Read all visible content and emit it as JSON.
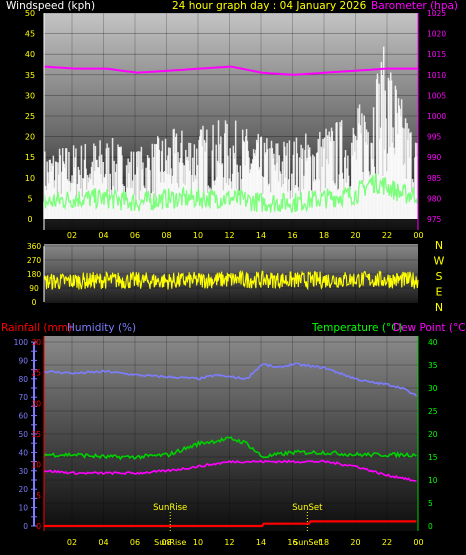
{
  "header": {
    "left": "Windspeed (kph)",
    "center": "24 hour graph day : 04 January 2026",
    "right": "Barometer (hpa)"
  },
  "compass": [
    "N",
    "W",
    "S",
    "E",
    "N"
  ],
  "bottom_header": {
    "rainfall": "Rainfall (mm)",
    "humidity": "Humidity (%)",
    "temperature": "Temperature (°C)",
    "dewpoint": "Dew Point (°C)"
  },
  "colors": {
    "wind_gust": "#ffffff",
    "wind_avg": "#7dff7d",
    "barometer": "#ff00ff",
    "direction": "#ffff00",
    "rainfall": "#ff0000",
    "humidity": "#7d7dff",
    "temperature": "#00d000",
    "dewpoint": "#ff00ff",
    "text_yellow": "#ffff00",
    "text_white": "#ffffff",
    "text_green": "#00ff00"
  },
  "chart_data": [
    {
      "type": "line",
      "title": "24 hour graph day : 04 January 2026",
      "x_ticks": [
        "02",
        "04",
        "06",
        "08",
        "10",
        "12",
        "14",
        "16",
        "18",
        "20",
        "22",
        "00"
      ],
      "ylabel_left": "Windspeed (kph)",
      "ylabel_right": "Barometer (hpa)",
      "ylim_left": [
        0,
        50
      ],
      "ylim_right": [
        975,
        1025
      ],
      "left_ticks": [
        "0",
        "5",
        "10",
        "15",
        "20",
        "25",
        "30",
        "35",
        "40",
        "45",
        "50"
      ],
      "right_ticks": [
        "975",
        "980",
        "985",
        "990",
        "995",
        "1000",
        "1005",
        "1010",
        "1015",
        "1020",
        "1025"
      ],
      "series": [
        {
          "name": "Windspeed (kph)",
          "hours": [
            0,
            2,
            4,
            6,
            8,
            10,
            12,
            14,
            16,
            18,
            20,
            21,
            22,
            23,
            24
          ],
          "values": [
            4,
            5,
            5,
            4,
            5,
            5,
            5,
            4,
            4,
            5,
            6,
            9,
            8,
            6,
            6
          ]
        },
        {
          "name": "Gust",
          "hours": [
            0,
            2,
            4,
            6,
            8,
            10,
            12,
            14,
            16,
            18,
            20,
            21,
            22,
            23,
            24
          ],
          "values": [
            12,
            13,
            14,
            12,
            15,
            16,
            17,
            14,
            14,
            16,
            18,
            25,
            30,
            20,
            14
          ]
        },
        {
          "name": "Barometer (hpa)",
          "hours": [
            0,
            2,
            4,
            6,
            8,
            10,
            12,
            14,
            16,
            18,
            20,
            22,
            24
          ],
          "values": [
            1012,
            1011.5,
            1011.5,
            1010.5,
            1011,
            1011.5,
            1012,
            1010.5,
            1010,
            1010.5,
            1011,
            1011.5,
            1011.5
          ]
        }
      ]
    },
    {
      "type": "line",
      "x_ticks": [
        "02",
        "04",
        "06",
        "08",
        "10",
        "12",
        "14",
        "16",
        "18",
        "20",
        "22",
        "00"
      ],
      "ylim": [
        0,
        360
      ],
      "ticks": [
        "0",
        "90",
        "180",
        "270",
        "360"
      ],
      "series": [
        {
          "name": "Wind direction",
          "hours": [
            0,
            4,
            8,
            12,
            16,
            20,
            24
          ],
          "values": [
            130,
            140,
            135,
            145,
            140,
            145,
            140
          ]
        }
      ]
    },
    {
      "type": "line",
      "x_ticks": [
        "02",
        "04",
        "06",
        "08",
        "10",
        "12",
        "14",
        "16",
        "18",
        "20",
        "22",
        "00"
      ],
      "ylabel_left": "Rainfall (mm)",
      "ylabel_left2": "Humidity (%)",
      "ylabel_right": "Temperature (°C)",
      "ylabel_right2": "Dew Point (°C)",
      "ylim_humidity": [
        0,
        100
      ],
      "ylim_rain": [
        0,
        30
      ],
      "ylim_temp": [
        0,
        40
      ],
      "humidity_ticks": [
        "0",
        "5",
        "10",
        "15",
        "20",
        "25",
        "30",
        "35",
        "40",
        "45",
        "50",
        "55",
        "60",
        "65",
        "70",
        "75",
        "80",
        "85",
        "90",
        "95",
        "100"
      ],
      "rain_ticks": [
        "0",
        "5",
        "10",
        "15",
        "20",
        "25",
        "30"
      ],
      "temp_ticks": [
        "0",
        "5",
        "10",
        "15",
        "20",
        "25",
        "30",
        "35",
        "40"
      ],
      "annotations": {
        "sunrise": "SunRise",
        "sunset": "SunSet",
        "sunrise_hour": 8.1,
        "sunset_hour": 16.9
      },
      "series": [
        {
          "name": "Humidity (%)",
          "hours": [
            0,
            2,
            4,
            6,
            8,
            10,
            11,
            12,
            13,
            14,
            15,
            16,
            17,
            18,
            19,
            20,
            21,
            22,
            23,
            24
          ],
          "values": [
            84,
            83,
            84,
            82,
            81,
            80,
            82,
            81,
            80,
            88,
            86,
            88,
            87,
            86,
            83,
            80,
            78,
            77,
            75,
            70
          ]
        },
        {
          "name": "Temperature (°C)",
          "hours": [
            0,
            2,
            4,
            6,
            8,
            10,
            11,
            12,
            13,
            14,
            16,
            18,
            20,
            22,
            24
          ],
          "values": [
            15.5,
            15.5,
            15,
            15,
            15.5,
            18,
            18.5,
            19,
            18,
            15,
            16,
            16,
            15.5,
            15.5,
            15.5
          ]
        },
        {
          "name": "Dew Point (°C)",
          "hours": [
            0,
            2,
            4,
            6,
            8,
            10,
            11,
            12,
            14,
            16,
            18,
            20,
            21,
            22,
            23,
            24
          ],
          "values": [
            12,
            11.5,
            11.5,
            11.5,
            12,
            13,
            13.5,
            14,
            14,
            14,
            14,
            13,
            12,
            11,
            10.5,
            9.5
          ]
        },
        {
          "name": "Rainfall (mm)",
          "hours": [
            0,
            14,
            14.01,
            17,
            17.01,
            24
          ],
          "values": [
            0,
            0,
            0.5,
            0.5,
            1,
            1
          ]
        }
      ]
    }
  ]
}
